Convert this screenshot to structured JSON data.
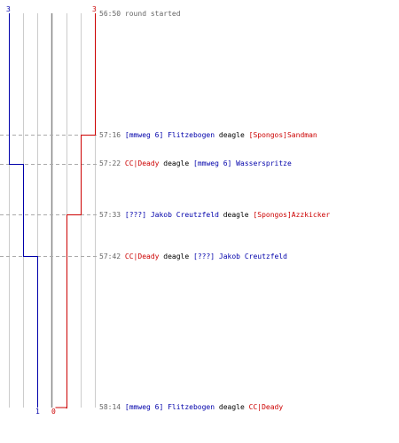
{
  "colors": {
    "team_blue": "#0000aa",
    "team_red": "#cc0000",
    "grid": "#cccccc",
    "center": "#888888",
    "dash": "#aaaaaa",
    "time": "#666666"
  },
  "counts": {
    "blue_start": "3",
    "red_start": "3",
    "blue_end": "1",
    "red_end": "0"
  },
  "events": [
    {
      "time": "56:50",
      "note": "round started"
    },
    {
      "time": "57:16",
      "killer": "[mmweg 6] Flitzebogen",
      "killer_team": "blue",
      "weapon": "deagle",
      "victim": "[Spongos]Sandman",
      "victim_team": "red"
    },
    {
      "time": "57:22",
      "killer": "CC|Deady",
      "killer_team": "red",
      "weapon": "deagle",
      "victim": "[mmweg 6] Wasserspritze",
      "victim_team": "blue"
    },
    {
      "time": "57:33",
      "killer": "[???] Jakob Creutzfeld",
      "killer_team": "blue",
      "weapon": "deagle",
      "victim": "[Spongos]Azzkicker",
      "victim_team": "red"
    },
    {
      "time": "57:42",
      "killer": "CC|Deady",
      "killer_team": "red",
      "weapon": "deagle",
      "victim": "[???] Jakob Creutzfeld",
      "victim_team": "blue"
    },
    {
      "time": "58:14",
      "killer": "[mmweg 6] Flitzebogen",
      "killer_team": "blue",
      "weapon": "deagle",
      "victim": "CC|Deady",
      "victim_team": "red"
    }
  ]
}
